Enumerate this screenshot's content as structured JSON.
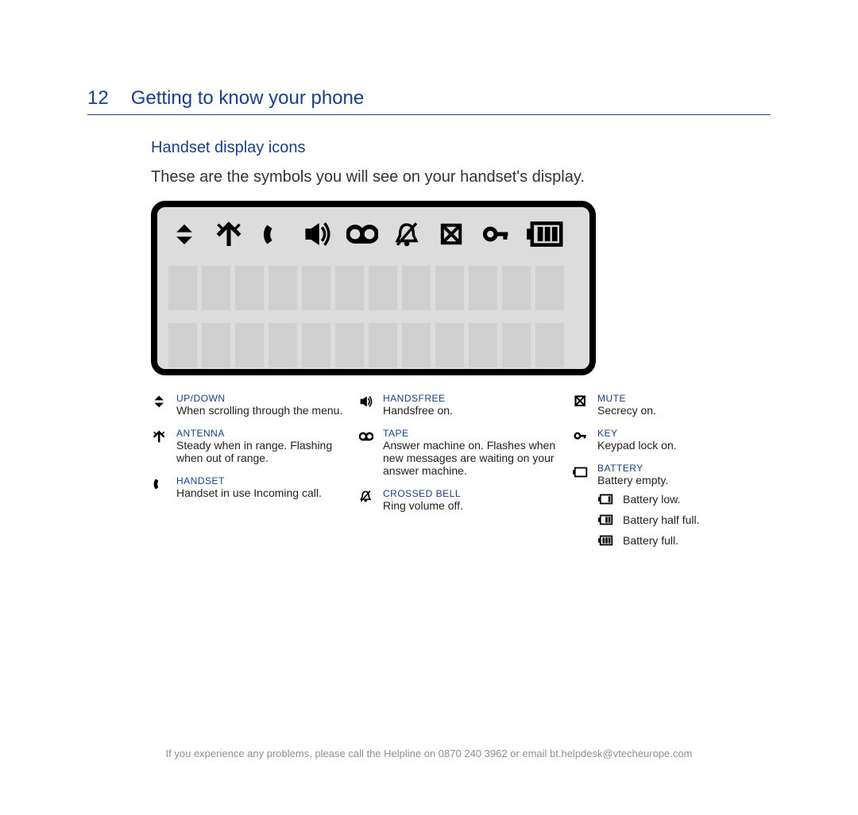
{
  "colors": {
    "accent": "#1a3f8a",
    "text": "#222222",
    "footer": "#8a8f99",
    "display_bg": "#dcdcdc",
    "cell_bg": "#d0d0d0",
    "page_bg": "#ffffff",
    "icon_black": "#000000"
  },
  "page_number": "12",
  "page_title": "Getting to know your phone",
  "section_title": "Handset display icons",
  "intro_text": "These are the symbols you will see on your handset's display.",
  "display": {
    "char_rows": 2,
    "chars_per_row": 12,
    "icons": [
      "updown",
      "antenna",
      "handset",
      "speaker",
      "tape",
      "bell-off",
      "mute",
      "key",
      "battery-full"
    ]
  },
  "legend": {
    "col1": [
      {
        "icon": "updown",
        "title": "UP/DOWN",
        "desc": "When scrolling through the menu."
      },
      {
        "icon": "antenna",
        "title": "ANTENNA",
        "desc": "Steady when in range. Flashing when out of range."
      },
      {
        "icon": "handset",
        "title": "HANDSET",
        "desc": "Handset in use Incoming call."
      }
    ],
    "col2": [
      {
        "icon": "speaker",
        "title": "HANDSFREE",
        "desc": "Handsfree on."
      },
      {
        "icon": "tape",
        "title": "TAPE",
        "desc": "Answer machine on. Flashes when new messages are waiting on your answer machine."
      },
      {
        "icon": "bell-off",
        "title": "CROSSED BELL",
        "desc": "Ring volume off."
      }
    ],
    "col3": [
      {
        "icon": "mute",
        "title": "MUTE",
        "desc": "Secrecy on."
      },
      {
        "icon": "key",
        "title": "KEY",
        "desc": "Keypad lock on."
      }
    ],
    "battery": {
      "title": "BATTERY",
      "levels": [
        {
          "icon": "battery-0",
          "label": "Battery empty."
        },
        {
          "icon": "battery-1",
          "label": "Battery low."
        },
        {
          "icon": "battery-2",
          "label": "Battery half full."
        },
        {
          "icon": "battery-3",
          "label": "Battery full."
        }
      ]
    }
  },
  "footer_text": "If you experience any problems, please call the Helpline on 0870 240 3962 or email bt.helpdesk@vtecheurope.com"
}
